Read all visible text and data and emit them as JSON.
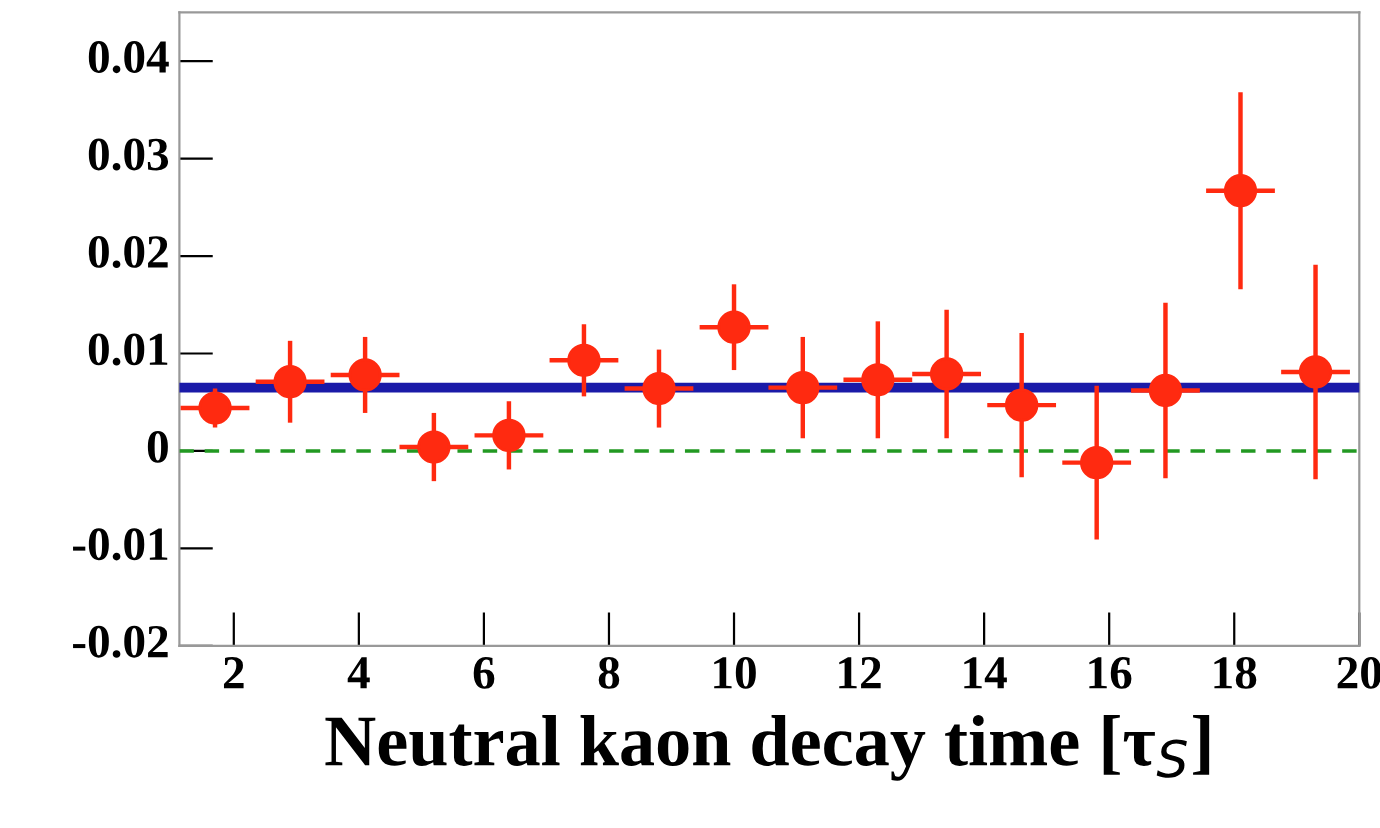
{
  "chart_data": {
    "type": "scatter",
    "xlabel": "Neutral kaon decay time [τ$_{S}$]",
    "xlim": [
      1.13,
      20
    ],
    "xticks": [
      2,
      4,
      6,
      8,
      10,
      12,
      14,
      16,
      18,
      20
    ],
    "ylim": [
      -0.02,
      0.045
    ],
    "yticks": [
      -0.02,
      -0.01,
      0,
      0.01,
      0.02,
      0.03,
      0.04
    ],
    "grid": false,
    "legend": false,
    "series": [
      {
        "type": "scatter",
        "marker": "circle",
        "color": "#ff2a10",
        "x": [
          1.7,
          2.9,
          4.1,
          5.2,
          6.4,
          7.6,
          8.8,
          10.0,
          11.1,
          12.3,
          13.4,
          14.6,
          15.8,
          16.9,
          18.1,
          19.3
        ],
        "values": [
          0.0044,
          0.0071,
          0.0078,
          0.0004,
          0.0016,
          0.0093,
          0.0064,
          0.0127,
          0.0065,
          0.0073,
          0.0079,
          0.0047,
          -0.0012,
          0.0062,
          0.0267,
          0.0081
        ],
        "errors": [
          0.002,
          0.0042,
          0.0039,
          0.0035,
          0.0035,
          0.0037,
          0.004,
          0.0044,
          0.0052,
          0.006,
          0.0066,
          0.0074,
          0.0079,
          0.009,
          0.0101,
          0.011
        ],
        "xerrors": [
          0.55,
          0.55,
          0.55,
          0.55,
          0.55,
          0.55,
          0.55,
          0.55,
          0.55,
          0.55,
          0.55,
          0.55,
          0.55,
          0.55,
          0.55,
          0.55
        ]
      },
      {
        "type": "line",
        "color": "#1a1aa8",
        "x": [
          1.13,
          20
        ],
        "values": [
          0.0065,
          0.0065
        ],
        "line_style": "solid"
      }
    ],
    "ref_lines": [
      {
        "axis": "y",
        "value": 0,
        "color": "#229922",
        "line_style": "dashed"
      }
    ]
  }
}
